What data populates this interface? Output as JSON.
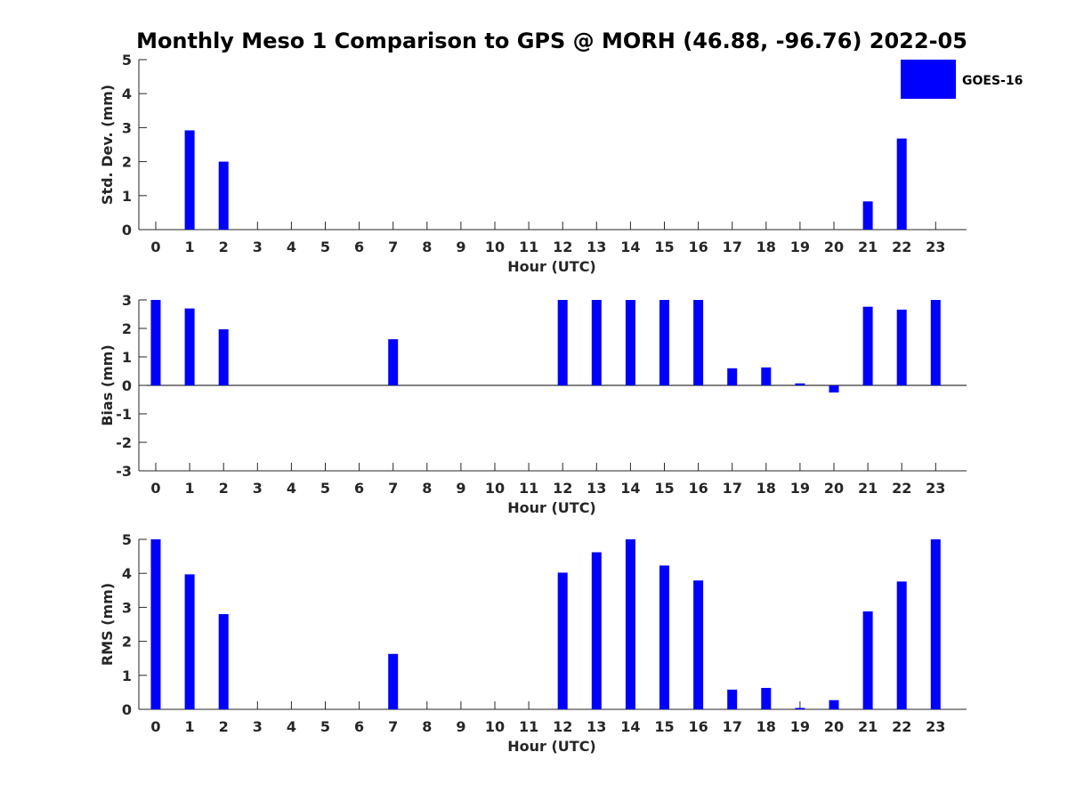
{
  "title": "Monthly Meso 1 Comparison to GPS @ MORH (46.88, -96.76) 2022-05",
  "legend": {
    "label": "GOES-16",
    "color": "#0000ff"
  },
  "chart_data": [
    {
      "type": "bar",
      "ylabel": "Std. Dev. (mm)",
      "xlabel": "Hour (UTC)",
      "ylim": [
        0,
        5
      ],
      "yticks": [
        0,
        1,
        2,
        3,
        4,
        5
      ],
      "categories": [
        "0",
        "1",
        "2",
        "3",
        "4",
        "5",
        "6",
        "7",
        "8",
        "9",
        "10",
        "11",
        "12",
        "13",
        "14",
        "15",
        "16",
        "17",
        "18",
        "19",
        "20",
        "21",
        "22",
        "23"
      ],
      "series": [
        {
          "name": "GOES-16",
          "values": [
            0,
            2.92,
            2.0,
            0,
            0,
            0,
            0,
            0,
            0,
            0,
            0,
            0,
            0,
            0,
            0,
            0,
            0,
            0,
            0,
            0,
            0,
            0.83,
            2.68,
            0
          ]
        }
      ]
    },
    {
      "type": "bar",
      "ylabel": "Bias (mm)",
      "xlabel": "Hour (UTC)",
      "ylim": [
        -3,
        3
      ],
      "yticks": [
        -3,
        -2,
        -1,
        0,
        1,
        2,
        3
      ],
      "categories": [
        "0",
        "1",
        "2",
        "3",
        "4",
        "5",
        "6",
        "7",
        "8",
        "9",
        "10",
        "11",
        "12",
        "13",
        "14",
        "15",
        "16",
        "17",
        "18",
        "19",
        "20",
        "21",
        "22",
        "23"
      ],
      "series": [
        {
          "name": "GOES-16",
          "values": [
            3.0,
            2.7,
            1.97,
            0,
            0,
            0,
            0,
            1.62,
            0,
            0,
            0,
            0,
            3.0,
            3.0,
            3.0,
            3.0,
            3.0,
            0.6,
            0.63,
            0.07,
            -0.25,
            2.76,
            2.66,
            3.0
          ]
        }
      ]
    },
    {
      "type": "bar",
      "ylabel": "RMS (mm)",
      "xlabel": "Hour (UTC)",
      "ylim": [
        0,
        5
      ],
      "yticks": [
        0,
        1,
        2,
        3,
        4,
        5
      ],
      "categories": [
        "0",
        "1",
        "2",
        "3",
        "4",
        "5",
        "6",
        "7",
        "8",
        "9",
        "10",
        "11",
        "12",
        "13",
        "14",
        "15",
        "16",
        "17",
        "18",
        "19",
        "20",
        "21",
        "22",
        "23"
      ],
      "series": [
        {
          "name": "GOES-16",
          "values": [
            5.0,
            3.97,
            2.8,
            0,
            0,
            0,
            0,
            1.63,
            0,
            0,
            0,
            0,
            4.02,
            4.62,
            5.0,
            4.23,
            3.79,
            0.58,
            0.63,
            0.04,
            0.27,
            2.88,
            3.76,
            5.0
          ]
        }
      ]
    }
  ]
}
